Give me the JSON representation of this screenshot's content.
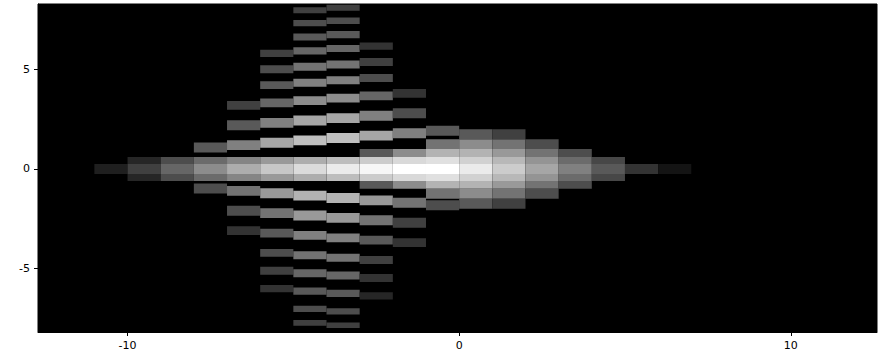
{
  "chart_data": {
    "type": "heatmap",
    "xlim": [
      -12.7,
      12.6
    ],
    "ylim": [
      -8.2,
      8.3
    ],
    "xticks": [
      -10,
      0,
      10
    ],
    "yticks": [
      -5,
      0,
      5
    ],
    "grid": false,
    "vlim": [
      0,
      1
    ],
    "color_range": [
      "#000000",
      "#ffffff"
    ],
    "cells": [
      [
        -8,
        -7,
        0.83,
        1.33,
        0.35
      ],
      [
        -7,
        -6,
        0.95,
        1.45,
        0.5
      ],
      [
        -6,
        -5,
        1.07,
        1.57,
        0.65
      ],
      [
        -5,
        -4,
        1.19,
        1.69,
        0.75
      ],
      [
        -4,
        -3,
        1.31,
        1.81,
        0.75
      ],
      [
        -3,
        -2,
        1.43,
        1.93,
        0.65
      ],
      [
        -2,
        -1,
        1.55,
        2.05,
        0.5
      ],
      [
        -1,
        0,
        1.67,
        2.17,
        0.35
      ],
      [
        -7,
        -6,
        1.95,
        2.45,
        0.35
      ],
      [
        -6,
        -5,
        2.07,
        2.57,
        0.5
      ],
      [
        -5,
        -4,
        2.19,
        2.69,
        0.65
      ],
      [
        -4,
        -3,
        2.31,
        2.81,
        0.65
      ],
      [
        -3,
        -2,
        2.43,
        2.93,
        0.5
      ],
      [
        -2,
        -1,
        2.55,
        3.05,
        0.3
      ],
      [
        -7,
        -6,
        2.98,
        3.42,
        0.25
      ],
      [
        -6,
        -5,
        3.1,
        3.54,
        0.4
      ],
      [
        -5,
        -4,
        3.22,
        3.66,
        0.55
      ],
      [
        -4,
        -3,
        3.34,
        3.78,
        0.55
      ],
      [
        -3,
        -2,
        3.46,
        3.9,
        0.4
      ],
      [
        -2,
        -1,
        3.58,
        4.02,
        0.2
      ],
      [
        -6,
        -5,
        4.02,
        4.42,
        0.35
      ],
      [
        -5,
        -4,
        4.14,
        4.54,
        0.5
      ],
      [
        -4,
        -3,
        4.26,
        4.66,
        0.5
      ],
      [
        -3,
        -2,
        4.38,
        4.78,
        0.3
      ],
      [
        -6,
        -5,
        4.82,
        5.22,
        0.3
      ],
      [
        -5,
        -4,
        4.94,
        5.34,
        0.45
      ],
      [
        -4,
        -3,
        5.06,
        5.46,
        0.45
      ],
      [
        -3,
        -2,
        5.18,
        5.58,
        0.25
      ],
      [
        -6,
        -5,
        5.64,
        6.0,
        0.25
      ],
      [
        -5,
        -4,
        5.76,
        6.12,
        0.4
      ],
      [
        -4,
        -3,
        5.88,
        6.24,
        0.4
      ],
      [
        -3,
        -2,
        6.0,
        6.36,
        0.2
      ],
      [
        -5,
        -4,
        6.46,
        6.82,
        0.35
      ],
      [
        -4,
        -3,
        6.58,
        6.94,
        0.35
      ],
      [
        -5,
        -4,
        7.18,
        7.5,
        0.3
      ],
      [
        -4,
        -3,
        7.3,
        7.62,
        0.3
      ],
      [
        -5,
        -4,
        7.84,
        8.14,
        0.25
      ],
      [
        -4,
        -3,
        7.96,
        8.26,
        0.25
      ],
      [
        -8,
        -7,
        -1.23,
        -0.73,
        0.3
      ],
      [
        -7,
        -6,
        -1.35,
        -0.85,
        0.45
      ],
      [
        -6,
        -5,
        -1.47,
        -0.97,
        0.6
      ],
      [
        -5,
        -4,
        -1.59,
        -1.09,
        0.7
      ],
      [
        -4,
        -3,
        -1.71,
        -1.21,
        0.7
      ],
      [
        -3,
        -2,
        -1.83,
        -1.33,
        0.6
      ],
      [
        -2,
        -1,
        -1.95,
        -1.45,
        0.45
      ],
      [
        -1,
        0,
        -2.07,
        -1.57,
        0.3
      ],
      [
        -7,
        -6,
        -2.35,
        -1.85,
        0.3
      ],
      [
        -6,
        -5,
        -2.47,
        -1.97,
        0.45
      ],
      [
        -5,
        -4,
        -2.59,
        -2.09,
        0.6
      ],
      [
        -4,
        -3,
        -2.71,
        -2.21,
        0.6
      ],
      [
        -3,
        -2,
        -2.83,
        -2.33,
        0.45
      ],
      [
        -2,
        -1,
        -2.95,
        -2.45,
        0.25
      ],
      [
        -7,
        -6,
        -3.32,
        -2.88,
        0.2
      ],
      [
        -6,
        -5,
        -3.44,
        -3.0,
        0.35
      ],
      [
        -5,
        -4,
        -3.56,
        -3.12,
        0.5
      ],
      [
        -4,
        -3,
        -3.68,
        -3.24,
        0.5
      ],
      [
        -3,
        -2,
        -3.8,
        -3.36,
        0.35
      ],
      [
        -2,
        -1,
        -3.92,
        -3.48,
        0.2
      ],
      [
        -6,
        -5,
        -4.42,
        -4.02,
        0.3
      ],
      [
        -5,
        -4,
        -4.54,
        -4.14,
        0.45
      ],
      [
        -4,
        -3,
        -4.66,
        -4.26,
        0.45
      ],
      [
        -3,
        -2,
        -4.78,
        -4.38,
        0.25
      ],
      [
        -6,
        -5,
        -5.32,
        -4.92,
        0.25
      ],
      [
        -5,
        -4,
        -5.44,
        -5.04,
        0.4
      ],
      [
        -4,
        -3,
        -5.56,
        -5.16,
        0.4
      ],
      [
        -3,
        -2,
        -5.68,
        -5.28,
        0.2
      ],
      [
        -6,
        -5,
        -6.2,
        -5.84,
        0.2
      ],
      [
        -5,
        -4,
        -6.32,
        -5.96,
        0.35
      ],
      [
        -4,
        -3,
        -6.44,
        -6.08,
        0.35
      ],
      [
        -3,
        -2,
        -6.56,
        -6.2,
        0.15
      ],
      [
        -5,
        -4,
        -7.2,
        -6.88,
        0.3
      ],
      [
        -4,
        -3,
        -7.32,
        -7.0,
        0.3
      ],
      [
        -5,
        -4,
        -7.88,
        -7.6,
        0.25
      ],
      [
        -4,
        -3,
        -8.0,
        -7.72,
        0.25
      ],
      [
        -11,
        -10,
        -0.25,
        0.25,
        0.12
      ],
      [
        -10,
        -9,
        -0.25,
        0.25,
        0.25
      ],
      [
        -9,
        -8,
        -0.25,
        0.25,
        0.4
      ],
      [
        -8,
        -7,
        -0.25,
        0.25,
        0.55
      ],
      [
        -7,
        -6,
        -0.25,
        0.25,
        0.68
      ],
      [
        -6,
        -5,
        -0.25,
        0.25,
        0.78
      ],
      [
        -5,
        -4,
        -0.25,
        0.25,
        0.86
      ],
      [
        -4,
        -3,
        -0.25,
        0.25,
        0.92
      ],
      [
        -3,
        -2,
        -0.25,
        0.25,
        0.97
      ],
      [
        -2,
        -1,
        -0.25,
        0.25,
        1.0
      ],
      [
        -1,
        0,
        -0.25,
        0.25,
        1.0
      ],
      [
        0,
        1,
        -0.25,
        0.25,
        0.92
      ],
      [
        1,
        2,
        -0.25,
        0.25,
        0.8
      ],
      [
        2,
        3,
        -0.25,
        0.25,
        0.65
      ],
      [
        3,
        4,
        -0.25,
        0.25,
        0.5
      ],
      [
        4,
        5,
        -0.25,
        0.25,
        0.35
      ],
      [
        5,
        6,
        -0.25,
        0.25,
        0.2
      ],
      [
        6,
        7,
        -0.25,
        0.25,
        0.08
      ],
      [
        -10,
        -9,
        0.25,
        0.6,
        0.15
      ],
      [
        -9,
        -8,
        0.25,
        0.6,
        0.3
      ],
      [
        -8,
        -7,
        0.25,
        0.6,
        0.42
      ],
      [
        -7,
        -6,
        0.25,
        0.6,
        0.52
      ],
      [
        -6,
        -5,
        0.25,
        0.6,
        0.6
      ],
      [
        -5,
        -4,
        0.25,
        0.6,
        0.68
      ],
      [
        -4,
        -3,
        0.25,
        0.6,
        0.74
      ],
      [
        -3,
        -2,
        0.25,
        0.6,
        0.8
      ],
      [
        -2,
        -1,
        0.25,
        0.6,
        0.85
      ],
      [
        -1,
        0,
        0.25,
        0.6,
        0.88
      ],
      [
        0,
        1,
        0.25,
        0.6,
        0.82
      ],
      [
        1,
        2,
        0.25,
        0.6,
        0.72
      ],
      [
        2,
        3,
        0.25,
        0.6,
        0.58
      ],
      [
        3,
        4,
        0.25,
        0.6,
        0.42
      ],
      [
        4,
        5,
        0.25,
        0.6,
        0.28
      ],
      [
        -10,
        -9,
        -0.6,
        -0.25,
        0.15
      ],
      [
        -9,
        -8,
        -0.6,
        -0.25,
        0.3
      ],
      [
        -8,
        -7,
        -0.6,
        -0.25,
        0.42
      ],
      [
        -7,
        -6,
        -0.6,
        -0.25,
        0.52
      ],
      [
        -6,
        -5,
        -0.6,
        -0.25,
        0.6
      ],
      [
        -5,
        -4,
        -0.6,
        -0.25,
        0.68
      ],
      [
        -4,
        -3,
        -0.6,
        -0.25,
        0.74
      ],
      [
        -3,
        -2,
        -0.6,
        -0.25,
        0.8
      ],
      [
        -2,
        -1,
        -0.6,
        -0.25,
        0.85
      ],
      [
        -1,
        0,
        -0.6,
        -0.25,
        0.88
      ],
      [
        0,
        1,
        -0.6,
        -0.25,
        0.82
      ],
      [
        1,
        2,
        -0.6,
        -0.25,
        0.72
      ],
      [
        2,
        3,
        -0.6,
        -0.25,
        0.58
      ],
      [
        3,
        4,
        -0.6,
        -0.25,
        0.42
      ],
      [
        4,
        5,
        -0.6,
        -0.25,
        0.28
      ],
      [
        -3,
        -2,
        0.6,
        1.0,
        0.35
      ],
      [
        -2,
        -1,
        0.6,
        1.0,
        0.55
      ],
      [
        -1,
        0,
        0.6,
        1.0,
        0.7
      ],
      [
        0,
        1,
        0.6,
        1.0,
        0.7
      ],
      [
        1,
        2,
        0.6,
        1.0,
        0.6
      ],
      [
        2,
        3,
        0.6,
        1.0,
        0.45
      ],
      [
        3,
        4,
        0.6,
        1.0,
        0.3
      ],
      [
        -3,
        -2,
        -1.0,
        -0.6,
        0.35
      ],
      [
        -2,
        -1,
        -1.0,
        -0.6,
        0.55
      ],
      [
        -1,
        0,
        -1.0,
        -0.6,
        0.7
      ],
      [
        0,
        1,
        -1.0,
        -0.6,
        0.7
      ],
      [
        1,
        2,
        -1.0,
        -0.6,
        0.6
      ],
      [
        2,
        3,
        -1.0,
        -0.6,
        0.45
      ],
      [
        3,
        4,
        -1.0,
        -0.6,
        0.3
      ],
      [
        -1,
        0,
        1.0,
        1.5,
        0.45
      ],
      [
        0,
        1,
        1.0,
        1.5,
        0.55
      ],
      [
        1,
        2,
        1.0,
        1.5,
        0.45
      ],
      [
        2,
        3,
        1.0,
        1.5,
        0.3
      ],
      [
        -1,
        0,
        -1.5,
        -1.0,
        0.45
      ],
      [
        0,
        1,
        -1.5,
        -1.0,
        0.55
      ],
      [
        1,
        2,
        -1.5,
        -1.0,
        0.45
      ],
      [
        2,
        3,
        -1.5,
        -1.0,
        0.3
      ],
      [
        0,
        1,
        1.5,
        2.0,
        0.35
      ],
      [
        1,
        2,
        1.5,
        2.0,
        0.25
      ],
      [
        0,
        1,
        -2.0,
        -1.5,
        0.35
      ],
      [
        1,
        2,
        -2.0,
        -1.5,
        0.25
      ]
    ]
  }
}
